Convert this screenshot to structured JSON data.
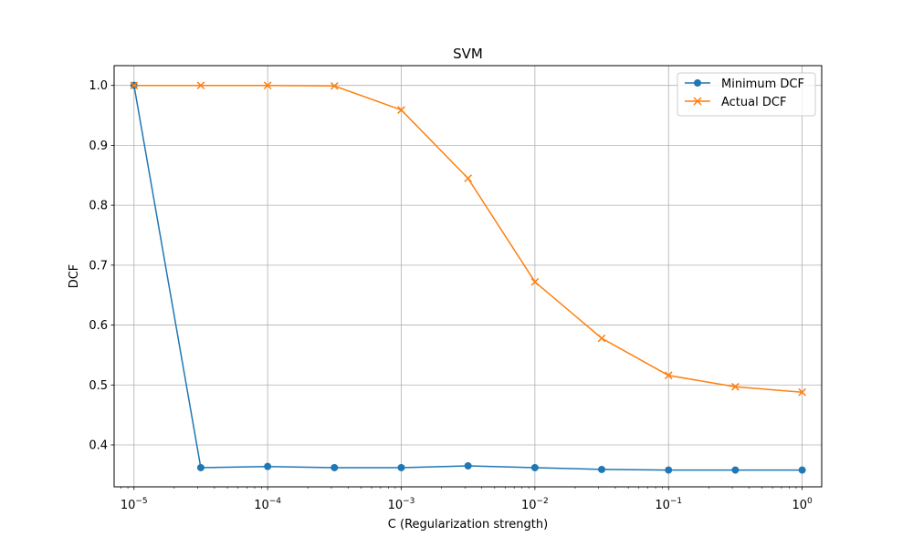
{
  "chart_data": {
    "type": "line",
    "title": "SVM",
    "xlabel": "C (Regularization strength)",
    "ylabel": "DCF",
    "xscale": "log",
    "xlim": [
      7.1e-06,
      1.4
    ],
    "ylim": [
      0.33,
      1.033
    ],
    "grid": true,
    "legend_position": "top-right",
    "x": [
      1e-05,
      3.16e-05,
      0.0001,
      0.000316,
      0.001,
      0.00316,
      0.01,
      0.0316,
      0.1,
      0.316,
      1
    ],
    "x_ticks": [
      {
        "value": 1e-05,
        "base": "10",
        "exp": "−5"
      },
      {
        "value": 0.0001,
        "base": "10",
        "exp": "−4"
      },
      {
        "value": 0.001,
        "base": "10",
        "exp": "−3"
      },
      {
        "value": 0.01,
        "base": "10",
        "exp": "−2"
      },
      {
        "value": 0.1,
        "base": "10",
        "exp": "−1"
      },
      {
        "value": 1,
        "base": "10",
        "exp": "0"
      }
    ],
    "y_ticks": [
      "0.4",
      "0.5",
      "0.6",
      "0.7",
      "0.8",
      "0.9",
      "1.0"
    ],
    "series": [
      {
        "name": "Minimum DCF",
        "color": "#1f77b4",
        "marker": "circle",
        "values": [
          1.0,
          0.362,
          0.364,
          0.362,
          0.362,
          0.365,
          0.362,
          0.359,
          0.358,
          0.358,
          0.358
        ]
      },
      {
        "name": "Actual DCF",
        "color": "#ff7f0e",
        "marker": "x",
        "values": [
          1.0,
          1.0,
          1.0,
          0.999,
          0.959,
          0.845,
          0.672,
          0.578,
          0.516,
          0.497,
          0.488
        ]
      }
    ]
  }
}
